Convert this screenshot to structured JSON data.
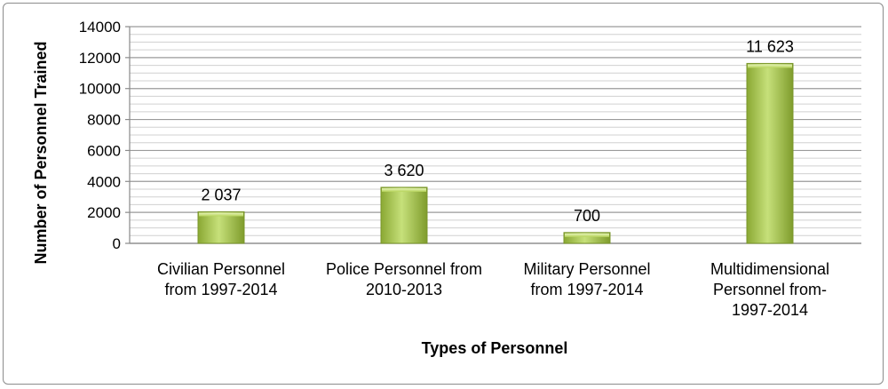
{
  "chart_data": {
    "type": "bar",
    "title": "",
    "xlabel": "Types of Personnel",
    "ylabel": "Number of Personnel Trained",
    "ylim": [
      0,
      14000
    ],
    "yticks": [
      "0",
      "2000",
      "4000",
      "6000",
      "8000",
      "10000",
      "12000",
      "14000"
    ],
    "grid": true,
    "categories": [
      [
        "Civilian Personnel",
        "from 1997-2014"
      ],
      [
        "Police Personnel from",
        "2010-2013"
      ],
      [
        "Military Personnel",
        "from 1997-2014"
      ],
      [
        "Multidimensional",
        "Personnel from-",
        "1997-2014"
      ]
    ],
    "values": [
      2037,
      3620,
      700,
      11623
    ],
    "data_labels": [
      "2 037",
      "3 620",
      "700",
      "11 623"
    ],
    "bar_color": "#9bbb3b"
  }
}
